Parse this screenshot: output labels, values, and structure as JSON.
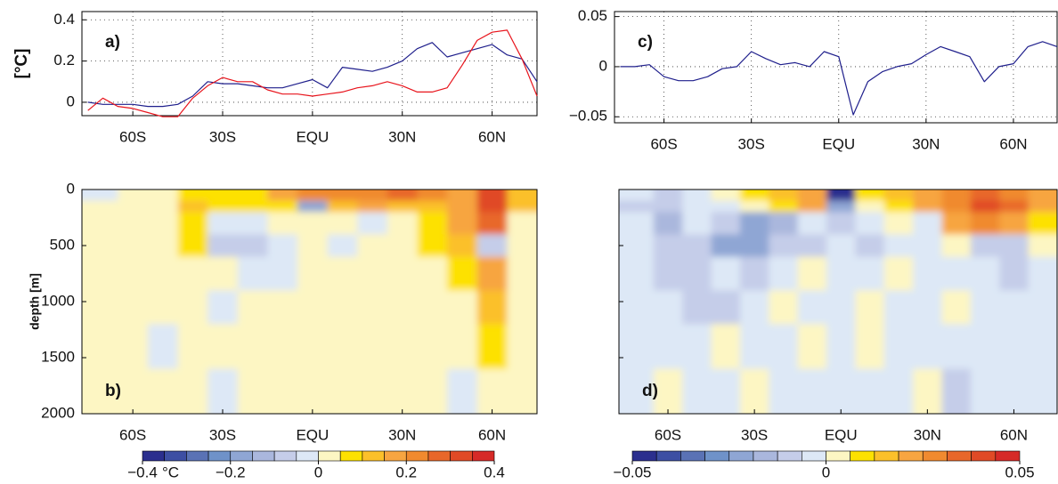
{
  "chart_data": [
    {
      "type": "line",
      "panel_label": "a)",
      "ylabel": "[°C]",
      "grid": true,
      "xlim": [
        -77,
        75
      ],
      "xticks": [
        {
          "value": -60,
          "label": "60S"
        },
        {
          "value": -30,
          "label": "30S"
        },
        {
          "value": 0,
          "label": "EQU"
        },
        {
          "value": 30,
          "label": "30N"
        },
        {
          "value": 60,
          "label": "60N"
        }
      ],
      "ylim": [
        -0.065,
        0.44
      ],
      "yticks": [
        0,
        0.2,
        0.4
      ],
      "x": [
        -75,
        -70,
        -65,
        -60,
        -55,
        -50,
        -45,
        -40,
        -35,
        -30,
        -25,
        -20,
        -15,
        -10,
        -5,
        0,
        5,
        10,
        15,
        20,
        25,
        30,
        35,
        40,
        45,
        50,
        55,
        60,
        65,
        70,
        75
      ],
      "series": [
        {
          "color": "#1f1f8c",
          "values": [
            0.0,
            -0.01,
            -0.01,
            -0.01,
            -0.02,
            -0.02,
            -0.01,
            0.03,
            0.1,
            0.09,
            0.09,
            0.08,
            0.07,
            0.07,
            0.09,
            0.11,
            0.07,
            0.17,
            0.16,
            0.15,
            0.17,
            0.2,
            0.26,
            0.29,
            0.22,
            0.24,
            0.26,
            0.28,
            0.23,
            0.21,
            0.1
          ]
        },
        {
          "color": "#e8141c",
          "values": [
            -0.04,
            0.02,
            -0.02,
            -0.03,
            -0.05,
            -0.07,
            -0.07,
            0.02,
            0.08,
            0.12,
            0.1,
            0.1,
            0.06,
            0.04,
            0.04,
            0.03,
            0.04,
            0.05,
            0.07,
            0.08,
            0.1,
            0.08,
            0.05,
            0.05,
            0.07,
            0.18,
            0.3,
            0.34,
            0.35,
            0.21,
            0.03
          ]
        }
      ]
    },
    {
      "type": "contour",
      "panel_label": "b)",
      "ylabel": "depth [m]",
      "show_ytick_labels": true,
      "xlim": [
        -77,
        75
      ],
      "xticks": [
        {
          "value": -60,
          "label": "60S"
        },
        {
          "value": -30,
          "label": "30S"
        },
        {
          "value": 0,
          "label": "EQU"
        },
        {
          "value": 30,
          "label": "30N"
        },
        {
          "value": 60,
          "label": "60N"
        }
      ],
      "ylim": [
        0,
        2000
      ],
      "y_reversed": true,
      "yticks": [
        0,
        500,
        1000,
        1500,
        2000
      ],
      "lat_bins": [
        -77,
        -65,
        -55,
        -45,
        -35,
        -25,
        -15,
        -5,
        5,
        15,
        25,
        35,
        45,
        55,
        65,
        75
      ],
      "depth_bins": [
        0,
        100,
        200,
        400,
        600,
        900,
        1200,
        1600,
        2000
      ],
      "z": [
        [
          -0.01,
          0.02,
          0.02,
          0.08,
          0.06,
          0.08,
          0.15,
          0.2,
          0.22,
          0.2,
          0.25,
          0.2,
          0.18,
          0.3,
          0.12
        ],
        [
          0.01,
          0.02,
          0.02,
          0.1,
          0.08,
          0.06,
          0.05,
          -0.2,
          0.12,
          0.15,
          0.12,
          0.1,
          0.15,
          0.3,
          0.1
        ],
        [
          0.01,
          0.02,
          0.02,
          0.08,
          -0.02,
          -0.05,
          0.02,
          0.0,
          0.02,
          -0.02,
          0.03,
          0.08,
          0.15,
          0.25,
          0.02
        ],
        [
          0.01,
          0.01,
          0.02,
          0.06,
          -0.08,
          -0.06,
          -0.02,
          0.01,
          -0.04,
          0.01,
          0.02,
          0.05,
          0.12,
          -0.1,
          0.01
        ],
        [
          0.01,
          0.01,
          0.01,
          0.01,
          0.01,
          -0.02,
          -0.02,
          0.01,
          0.01,
          0.01,
          0.02,
          0.02,
          0.08,
          0.15,
          0.01
        ],
        [
          0.01,
          0.01,
          0.01,
          0.01,
          -0.01,
          0.01,
          0.01,
          0.01,
          0.01,
          0.01,
          0.01,
          0.01,
          0.01,
          0.1,
          0.01
        ],
        [
          0.01,
          0.01,
          -0.01,
          0.01,
          0.01,
          0.01,
          0.01,
          0.01,
          0.01,
          0.01,
          0.01,
          0.01,
          0.01,
          0.06,
          0.01
        ],
        [
          0.01,
          0.01,
          0.01,
          0.01,
          -0.01,
          0.01,
          0.01,
          0.01,
          0.01,
          0.01,
          0.01,
          0.01,
          -0.01,
          0.01,
          0.01
        ]
      ],
      "colorbar": {
        "unit": "°C",
        "levels": [
          -0.4,
          -0.35,
          -0.3,
          -0.25,
          -0.2,
          -0.15,
          -0.1,
          -0.05,
          0,
          0.05,
          0.1,
          0.15,
          0.2,
          0.25,
          0.3,
          0.35,
          0.4
        ],
        "colors": [
          "#2b2f8e",
          "#3d4fa3",
          "#5a72b5",
          "#6f92c9",
          "#8fa6d4",
          "#aab7dd",
          "#c5cde9",
          "#dde8f6",
          "#fdf6c3",
          "#fde100",
          "#fbc02a",
          "#f7a541",
          "#f08a2f",
          "#e8672a",
          "#e04a26",
          "#d62a27"
        ],
        "ticks": [
          {
            "value": -0.4,
            "label": "−0.4"
          },
          {
            "value": -0.2,
            "label": "−0.2"
          },
          0,
          0.2,
          0.4
        ]
      }
    },
    {
      "type": "line",
      "panel_label": "c)",
      "grid": true,
      "xlim": [
        -77,
        75
      ],
      "xticks": [
        {
          "value": -60,
          "label": "60S"
        },
        {
          "value": -30,
          "label": "30S"
        },
        {
          "value": 0,
          "label": "EQU"
        },
        {
          "value": 30,
          "label": "30N"
        },
        {
          "value": 60,
          "label": "60N"
        }
      ],
      "ylim": [
        -0.056,
        0.055
      ],
      "yticks": [
        {
          "value": -0.05,
          "label": "−0.05"
        },
        0,
        0.05
      ],
      "x": [
        -75,
        -70,
        -65,
        -60,
        -55,
        -50,
        -45,
        -40,
        -35,
        -30,
        -25,
        -20,
        -15,
        -10,
        -5,
        0,
        5,
        10,
        15,
        20,
        25,
        30,
        35,
        40,
        45,
        50,
        55,
        60,
        65,
        70,
        75
      ],
      "series": [
        {
          "color": "#1f1f8c",
          "values": [
            0.0,
            0.0,
            0.002,
            -0.01,
            -0.014,
            -0.014,
            -0.01,
            -0.002,
            0.0,
            0.015,
            0.008,
            0.002,
            0.004,
            0.0,
            0.015,
            0.01,
            -0.048,
            -0.015,
            -0.005,
            0.0,
            0.003,
            0.012,
            0.02,
            0.015,
            0.01,
            -0.015,
            0.0,
            0.003,
            0.02,
            0.025,
            0.02
          ]
        }
      ]
    },
    {
      "type": "contour",
      "panel_label": "d)",
      "show_ytick_labels": false,
      "xlim": [
        -77,
        75
      ],
      "xticks": [
        {
          "value": -60,
          "label": "60S"
        },
        {
          "value": -30,
          "label": "30S"
        },
        {
          "value": 0,
          "label": "EQU"
        },
        {
          "value": 30,
          "label": "30N"
        },
        {
          "value": 60,
          "label": "60N"
        }
      ],
      "ylim": [
        0,
        2000
      ],
      "y_reversed": true,
      "yticks": [
        0,
        500,
        1000,
        1500,
        2000
      ],
      "lat_bins": [
        -77,
        -65,
        -55,
        -45,
        -35,
        -25,
        -15,
        -5,
        5,
        15,
        25,
        35,
        45,
        55,
        65,
        75
      ],
      "depth_bins": [
        0,
        100,
        200,
        400,
        600,
        900,
        1200,
        1600,
        2000
      ],
      "z": [
        [
          -0.005,
          -0.01,
          -0.004,
          0.002,
          0.01,
          0.015,
          0.02,
          -0.045,
          0.01,
          0.015,
          0.02,
          0.03,
          0.035,
          0.03,
          0.02
        ],
        [
          -0.01,
          -0.01,
          -0.005,
          -0.005,
          0.005,
          0.01,
          0.02,
          -0.02,
          0.005,
          0.01,
          0.02,
          0.03,
          0.04,
          0.035,
          0.02
        ],
        [
          -0.003,
          -0.015,
          -0.005,
          -0.01,
          -0.02,
          -0.015,
          -0.005,
          -0.01,
          -0.005,
          0.002,
          -0.005,
          0.02,
          0.025,
          0.02,
          0.01
        ],
        [
          -0.003,
          -0.01,
          -0.01,
          -0.02,
          -0.02,
          -0.01,
          -0.008,
          -0.005,
          -0.008,
          -0.003,
          -0.003,
          0.005,
          -0.01,
          -0.01,
          0.002
        ],
        [
          -0.003,
          -0.012,
          -0.01,
          -0.005,
          -0.008,
          -0.005,
          0.002,
          -0.003,
          -0.003,
          0.002,
          -0.003,
          -0.003,
          -0.003,
          -0.01,
          -0.003
        ],
        [
          -0.003,
          -0.005,
          -0.012,
          -0.01,
          -0.003,
          0.002,
          -0.003,
          -0.003,
          0.002,
          -0.003,
          -0.003,
          0.002,
          -0.003,
          -0.003,
          -0.003
        ],
        [
          -0.003,
          -0.003,
          -0.005,
          0.002,
          -0.003,
          -0.003,
          0.002,
          -0.003,
          0.002,
          -0.003,
          -0.003,
          -0.003,
          -0.003,
          -0.003,
          -0.003
        ],
        [
          -0.003,
          0.002,
          -0.003,
          -0.003,
          0.002,
          -0.003,
          -0.003,
          -0.003,
          -0.003,
          -0.003,
          0.002,
          -0.008,
          -0.003,
          -0.003,
          -0.003
        ]
      ],
      "colorbar": {
        "levels": [
          -0.05,
          -0.04375,
          -0.0375,
          -0.03125,
          -0.025,
          -0.01875,
          -0.0125,
          -0.00625,
          0,
          0.00625,
          0.0125,
          0.01875,
          0.025,
          0.03125,
          0.0375,
          0.04375,
          0.05
        ],
        "colors": [
          "#2b2f8e",
          "#3d4fa3",
          "#5a72b5",
          "#6f92c9",
          "#8fa6d4",
          "#aab7dd",
          "#c5cde9",
          "#dde8f6",
          "#fdf6c3",
          "#fde100",
          "#fbc02a",
          "#f7a541",
          "#f08a2f",
          "#e8672a",
          "#e04a26",
          "#d62a27"
        ],
        "ticks": [
          {
            "value": -0.05,
            "label": "−0.05"
          },
          0,
          0.05
        ]
      }
    }
  ]
}
